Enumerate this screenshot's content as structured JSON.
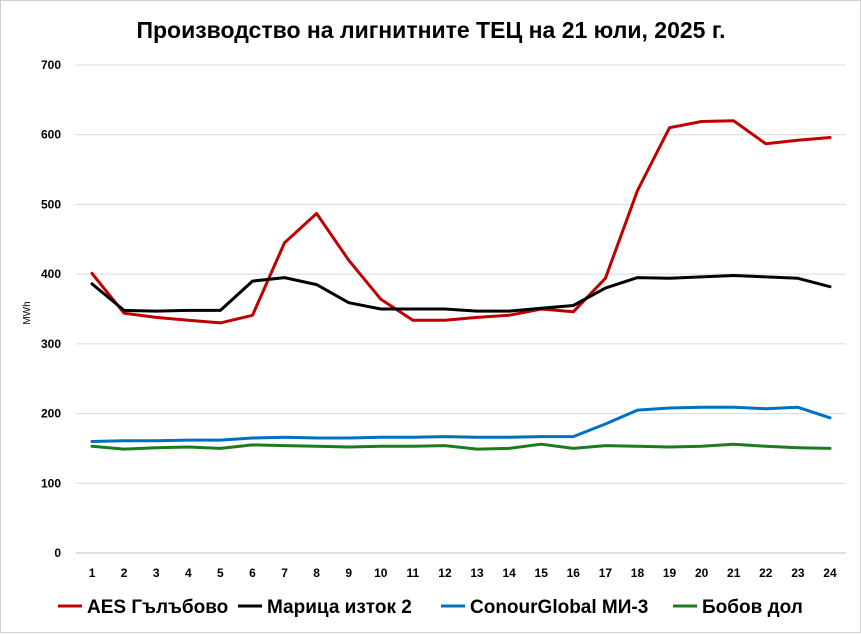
{
  "chart_data": {
    "type": "line",
    "title": "Производство на лигнитните ТЕЦ на 21 юли, 2025 г.",
    "xlabel": "",
    "ylabel": "MWh",
    "ylim": [
      0,
      700
    ],
    "yticks": [
      0,
      100,
      200,
      300,
      400,
      500,
      600,
      700
    ],
    "grid": true,
    "legend": "bottom",
    "categories": [
      "1",
      "2",
      "3",
      "4",
      "5",
      "6",
      "7",
      "8",
      "9",
      "10",
      "11",
      "12",
      "13",
      "14",
      "15",
      "16",
      "17",
      "18",
      "19",
      "20",
      "21",
      "22",
      "23",
      "24"
    ],
    "series": [
      {
        "name": "AES Гълъбово",
        "color": "#c00000",
        "values": [
          401,
          344,
          338,
          334,
          330,
          341,
          445,
          487,
          420,
          364,
          334,
          334,
          338,
          341,
          350,
          346,
          394,
          520,
          610,
          619,
          620,
          587,
          592,
          596
        ]
      },
      {
        "name": "Марица изток 2",
        "color": "#000000",
        "values": [
          386,
          348,
          347,
          348,
          348,
          390,
          395,
          385,
          359,
          350,
          350,
          350,
          347,
          347,
          351,
          355,
          380,
          395,
          394,
          396,
          398,
          396,
          394,
          382
        ]
      },
      {
        "name": "ConourGlobal МИ-3",
        "color": "#0070c0",
        "values": [
          160,
          161,
          161,
          162,
          162,
          165,
          166,
          165,
          165,
          166,
          166,
          167,
          166,
          166,
          167,
          167,
          185,
          205,
          208,
          209,
          209,
          207,
          209,
          194
        ]
      },
      {
        "name": "Бобов дол",
        "color": "#1e7a1e",
        "values": [
          153,
          149,
          151,
          152,
          150,
          155,
          154,
          153,
          152,
          153,
          153,
          154,
          149,
          150,
          156,
          150,
          154,
          153,
          152,
          153,
          156,
          153,
          151,
          150
        ]
      }
    ]
  }
}
